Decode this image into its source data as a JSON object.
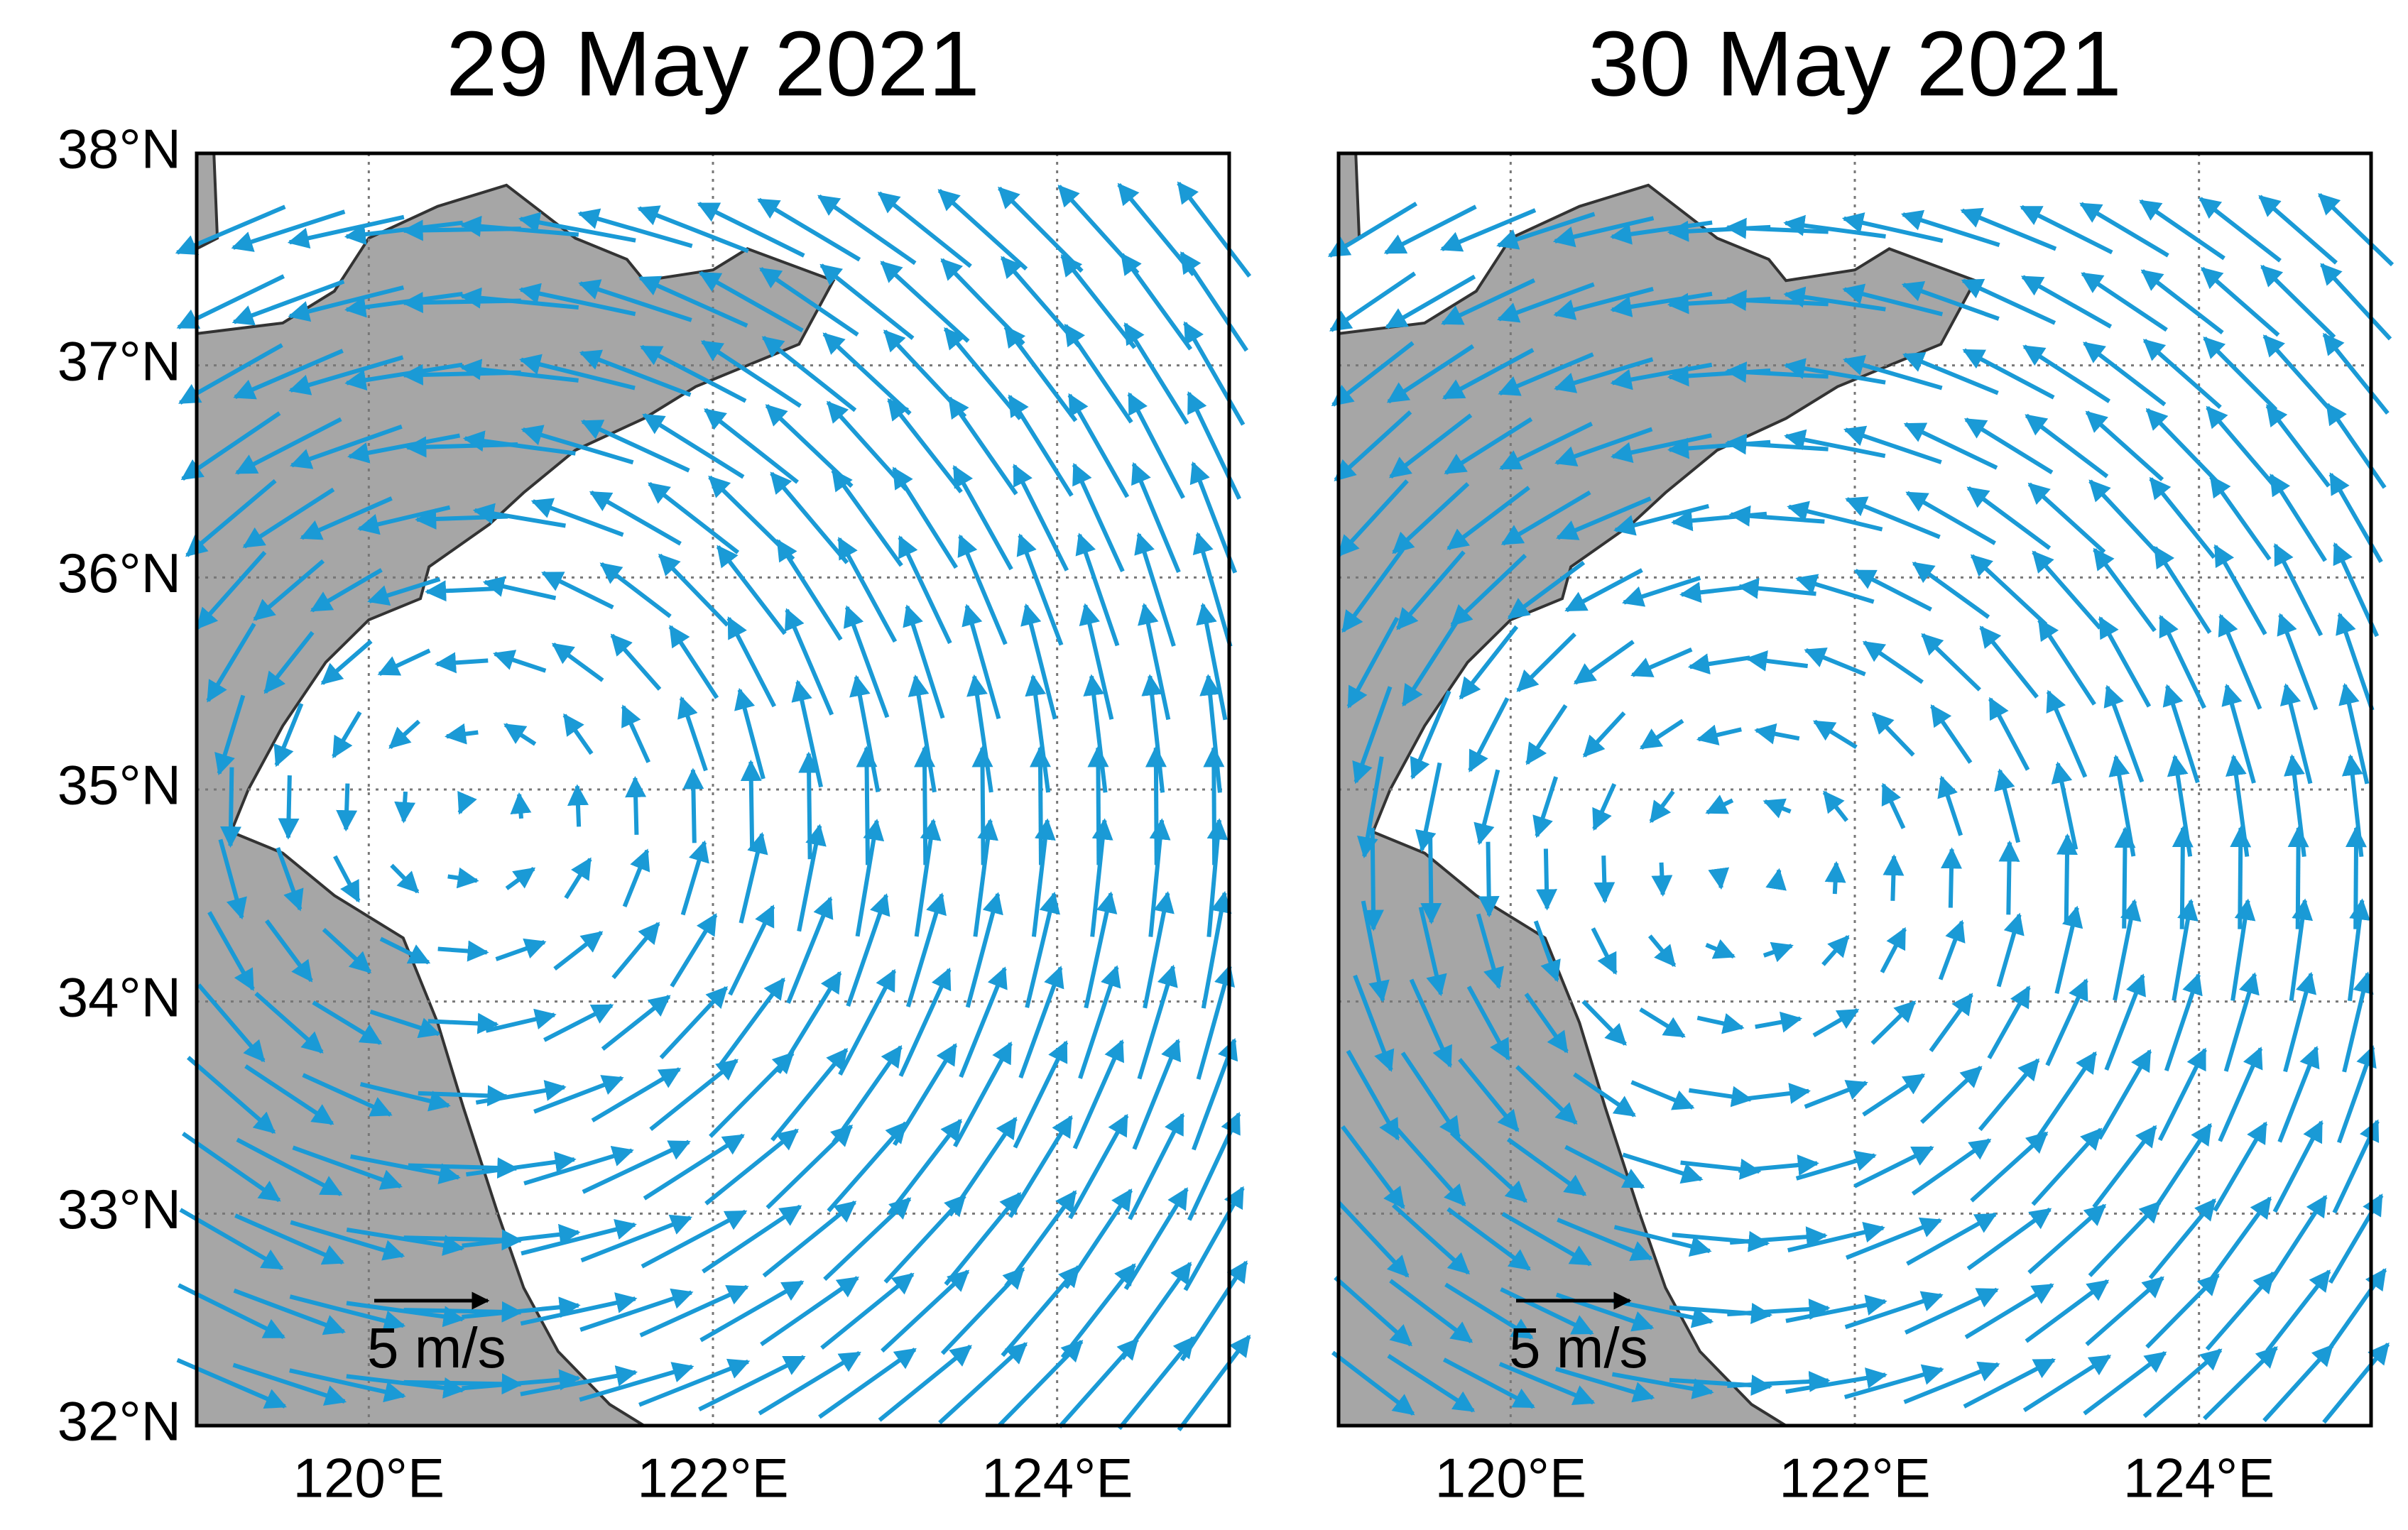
{
  "panels": [
    {
      "title": "29 May 2021",
      "xlim": [
        119,
        125
      ],
      "ylim": [
        32,
        38
      ],
      "xticks": [
        {
          "value": 120,
          "label": "120°E"
        },
        {
          "value": 122,
          "label": "122°E"
        },
        {
          "value": 124,
          "label": "124°E"
        }
      ],
      "yticks": [
        {
          "value": 32,
          "label": "32°N"
        },
        {
          "value": 33,
          "label": "33°N"
        },
        {
          "value": 34,
          "label": "34°N"
        },
        {
          "value": 35,
          "label": "35°N"
        },
        {
          "value": 36,
          "label": "36°N"
        },
        {
          "value": 37,
          "label": "37°N"
        },
        {
          "value": 38,
          "label": "38°N"
        }
      ],
      "scale_label": "5 m/s"
    },
    {
      "title": "30 May 2021",
      "xlim": [
        119,
        125
      ],
      "ylim": [
        32,
        38
      ],
      "xticks": [
        {
          "value": 120,
          "label": "120°E"
        },
        {
          "value": 122,
          "label": "122°E"
        },
        {
          "value": 124,
          "label": "124°E"
        }
      ],
      "yticks": [
        33,
        34,
        35,
        36,
        37
      ],
      "scale_label": "5 m/s"
    }
  ]
}
